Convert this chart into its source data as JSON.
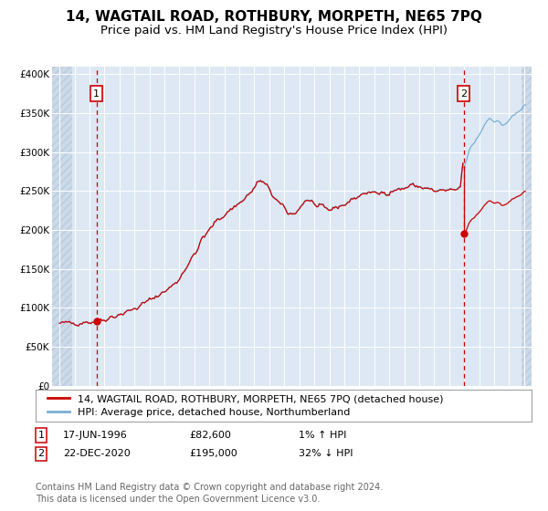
{
  "title": "14, WAGTAIL ROAD, ROTHBURY, MORPETH, NE65 7PQ",
  "subtitle": "Price paid vs. HM Land Registry's House Price Index (HPI)",
  "legend_label_red": "14, WAGTAIL ROAD, ROTHBURY, MORPETH, NE65 7PQ (detached house)",
  "legend_label_blue": "HPI: Average price, detached house, Northumberland",
  "annotation1_date": "17-JUN-1996",
  "annotation1_price": "£82,600",
  "annotation1_hpi": "1% ↑ HPI",
  "annotation2_date": "22-DEC-2020",
  "annotation2_price": "£195,000",
  "annotation2_hpi": "32% ↓ HPI",
  "footer": "Contains HM Land Registry data © Crown copyright and database right 2024.\nThis data is licensed under the Open Government Licence v3.0.",
  "sale1_year": 1996.46,
  "sale1_value": 82600,
  "sale2_year": 2020.97,
  "sale2_value": 195000,
  "ylim_min": 0,
  "ylim_max": 410000,
  "xlim_min": 1993.5,
  "xlim_max": 2025.5,
  "background_color": "#dde8f4",
  "grid_color": "#ffffff",
  "line_color_red": "#cc0000",
  "line_color_blue": "#7aafd4",
  "dot_color": "#cc0000",
  "dashed_color": "#cc0000",
  "title_fontsize": 11,
  "subtitle_fontsize": 9.5,
  "tick_fontsize": 7.5,
  "legend_fontsize": 8,
  "annotation_fontsize": 8,
  "footer_fontsize": 7
}
